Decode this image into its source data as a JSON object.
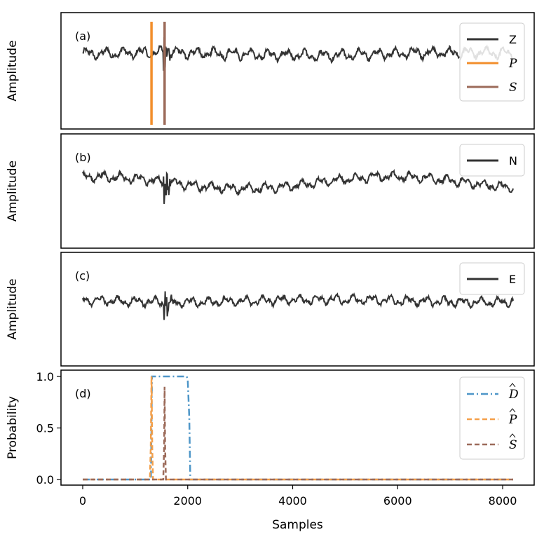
{
  "chart_data": [
    {
      "type": "line",
      "panel": "(a)",
      "ylabel": "Amplitude",
      "channel": "Z",
      "legend": [
        "Z",
        "P",
        "S"
      ],
      "picks": {
        "P": 1310,
        "S": 1560
      },
      "colors": {
        "trace": "#333333",
        "P": "#f28e2b",
        "S": "#9c6b5a"
      },
      "noise_amplitude": 0.35,
      "event_amplitude": 1.1,
      "legend_position": "top-right"
    },
    {
      "type": "line",
      "panel": "(b)",
      "ylabel": "Amplitude",
      "channel": "N",
      "legend": [
        "N"
      ],
      "colors": {
        "trace": "#333333"
      },
      "noise_amplitude": 0.3,
      "event_amplitude": 1.3,
      "legend_position": "top-right"
    },
    {
      "type": "line",
      "panel": "(c)",
      "ylabel": "Amplitude",
      "channel": "E",
      "legend": [
        "E"
      ],
      "colors": {
        "trace": "#333333"
      },
      "noise_amplitude": 0.3,
      "event_amplitude": 1.4,
      "legend_position": "top-right"
    },
    {
      "type": "line",
      "panel": "(d)",
      "ylabel": "Probability",
      "xlabel": "Samples",
      "xlim": [
        0,
        8200
      ],
      "ylim": [
        0,
        1
      ],
      "x_ticks": [
        0,
        2000,
        4000,
        6000,
        8000
      ],
      "x_tick_labels": [
        "0",
        "2000",
        "4000",
        "6000",
        "8000"
      ],
      "y_ticks": [
        0,
        0.5,
        1
      ],
      "y_tick_labels": [
        "0.0",
        "0.5",
        "1.0"
      ],
      "series": [
        {
          "name": "D",
          "style": "dashdot",
          "color": "#4e96c8",
          "points": [
            [
              0,
              0
            ],
            [
              1300,
              0
            ],
            [
              1320,
              1
            ],
            [
              1980,
              1
            ],
            [
              2000,
              0.97
            ],
            [
              2030,
              0.6
            ],
            [
              2050,
              0
            ],
            [
              8200,
              0
            ]
          ]
        },
        {
          "name": "P",
          "style": "dashed",
          "color": "#f5a04a",
          "points": [
            [
              0,
              0
            ],
            [
              1280,
              0
            ],
            [
              1295,
              0.3
            ],
            [
              1310,
              1
            ],
            [
              1325,
              0.3
            ],
            [
              1340,
              0
            ],
            [
              8200,
              0
            ]
          ]
        },
        {
          "name": "S",
          "style": "dashed",
          "color": "#9c6b5a",
          "points": [
            [
              0,
              0
            ],
            [
              1535,
              0
            ],
            [
              1550,
              0.3
            ],
            [
              1560,
              0.9
            ],
            [
              1570,
              0.3
            ],
            [
              1585,
              0
            ],
            [
              8200,
              0
            ]
          ]
        }
      ],
      "legend_position": "top-right"
    }
  ]
}
